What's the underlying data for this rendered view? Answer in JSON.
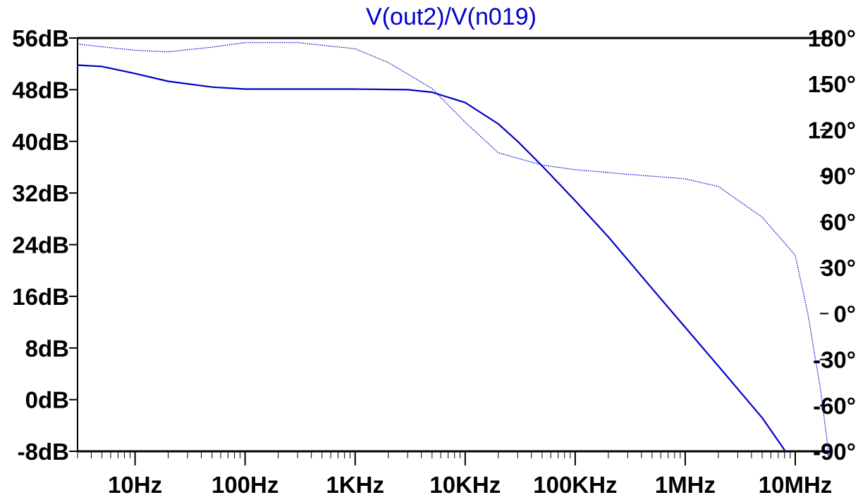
{
  "chart_data": {
    "type": "line",
    "title": "V(out2)/V(n019)",
    "x_scale": "log",
    "x_range_hz": [
      3,
      20000000
    ],
    "x_ticks": [
      {
        "value": 10,
        "label": "10Hz"
      },
      {
        "value": 100,
        "label": "100Hz"
      },
      {
        "value": 1000,
        "label": "1KHz"
      },
      {
        "value": 10000,
        "label": "10KHz"
      },
      {
        "value": 100000,
        "label": "100KHz"
      },
      {
        "value": 1000000,
        "label": "1MHz"
      },
      {
        "value": 10000000,
        "label": "10MHz"
      }
    ],
    "y_left": {
      "range": [
        -8,
        56
      ],
      "unit": "dB",
      "ticks": [
        {
          "value": 56,
          "label": "56dB"
        },
        {
          "value": 48,
          "label": "48dB"
        },
        {
          "value": 40,
          "label": "40dB"
        },
        {
          "value": 32,
          "label": "32dB"
        },
        {
          "value": 24,
          "label": "24dB"
        },
        {
          "value": 16,
          "label": "16dB"
        },
        {
          "value": 8,
          "label": "8dB"
        },
        {
          "value": 0,
          "label": "0dB"
        },
        {
          "value": -8,
          "label": "-8dB"
        }
      ]
    },
    "y_right": {
      "range": [
        -90,
        180
      ],
      "unit": "degrees",
      "ticks": [
        {
          "value": 180,
          "label": "180°"
        },
        {
          "value": 150,
          "label": "150°"
        },
        {
          "value": 120,
          "label": "120°"
        },
        {
          "value": 90,
          "label": "90°"
        },
        {
          "value": 60,
          "label": "60°"
        },
        {
          "value": 30,
          "label": "30°"
        },
        {
          "value": 0,
          "label": "0°"
        },
        {
          "value": -30,
          "label": "-30°"
        },
        {
          "value": -60,
          "label": "-60°"
        },
        {
          "value": -90,
          "label": "-90°"
        }
      ]
    },
    "grid": false,
    "series": [
      {
        "quantity": "magnitude",
        "axis": "left",
        "style": "solid",
        "color": "#0000cc",
        "points": [
          [
            3,
            51.8
          ],
          [
            5,
            51.6
          ],
          [
            10,
            50.5
          ],
          [
            20,
            49.3
          ],
          [
            50,
            48.4
          ],
          [
            100,
            48.1
          ],
          [
            300,
            48.1
          ],
          [
            1000,
            48.1
          ],
          [
            3000,
            48.0
          ],
          [
            5000,
            47.6
          ],
          [
            10000,
            46.0
          ],
          [
            20000,
            42.7
          ],
          [
            30000,
            40.0
          ],
          [
            50000,
            36.2
          ],
          [
            100000,
            30.8
          ],
          [
            200000,
            25.2
          ],
          [
            500000,
            17.2
          ],
          [
            1000000,
            11.2
          ],
          [
            2000000,
            5.2
          ],
          [
            5000000,
            -2.8
          ],
          [
            8000000,
            -7.8
          ]
        ]
      },
      {
        "quantity": "phase",
        "axis": "right",
        "style": "dotted",
        "color": "#0000cc",
        "points": [
          [
            3,
            176
          ],
          [
            10,
            172
          ],
          [
            20,
            171
          ],
          [
            50,
            174
          ],
          [
            100,
            177
          ],
          [
            300,
            177
          ],
          [
            1000,
            173
          ],
          [
            2000,
            164
          ],
          [
            5000,
            147
          ],
          [
            10000,
            125
          ],
          [
            20000,
            105
          ],
          [
            50000,
            97
          ],
          [
            100000,
            94
          ],
          [
            300000,
            91
          ],
          [
            1000000,
            88
          ],
          [
            2000000,
            83
          ],
          [
            5000000,
            63
          ],
          [
            10000000,
            38
          ],
          [
            13000000,
            0
          ],
          [
            17000000,
            -50
          ],
          [
            20000000,
            -90
          ]
        ]
      }
    ]
  }
}
